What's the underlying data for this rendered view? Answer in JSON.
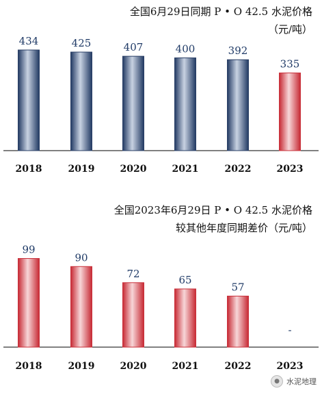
{
  "chart_data": [
    {
      "type": "bar",
      "title": "全国6月29日同期 P • O 42.5 水泥价格",
      "subtitle": "（元/吨）",
      "categories": [
        "2018",
        "2019",
        "2020",
        "2021",
        "2022",
        "2023"
      ],
      "values": [
        434,
        425,
        407,
        400,
        392,
        335
      ],
      "data_labels": [
        "434",
        "425",
        "407",
        "400",
        "392",
        "335"
      ],
      "ylim": [
        0,
        450
      ],
      "grid": false,
      "colors": [
        "#2a3f66",
        "#2a3f66",
        "#2a3f66",
        "#2a3f66",
        "#2a3f66",
        "#c9303a"
      ]
    },
    {
      "type": "bar",
      "title": "全国2023年6月29日 P • O 42.5 水泥价格",
      "subtitle": "较其他年度同期差价（元/吨）",
      "categories": [
        "2018",
        "2019",
        "2020",
        "2021",
        "2022",
        "2023"
      ],
      "values": [
        99,
        90,
        72,
        65,
        57,
        0
      ],
      "data_labels": [
        "99",
        "90",
        "72",
        "65",
        "57",
        "-"
      ],
      "ylim": [
        0,
        120
      ],
      "grid": false,
      "colors": [
        "#c9303a",
        "#c9303a",
        "#c9303a",
        "#c9303a",
        "#c9303a",
        "#c9303a"
      ]
    }
  ],
  "watermark": {
    "text": "水泥地理",
    "icon": "wechat-icon"
  }
}
